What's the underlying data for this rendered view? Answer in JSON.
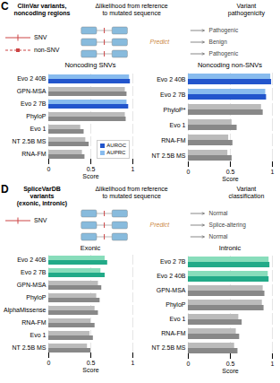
{
  "chart_data": [
    {
      "type": "bar",
      "orientation": "horizontal",
      "title": "Noncoding SNVs",
      "annotations": [
        "C",
        "ClinVar variants,\nnoncoding regions",
        "Δlikelihood from reference\nto mutated sequence",
        "Predict",
        "Variant\npathogenicity",
        "SNV",
        "non-SNV",
        "Pathogenic",
        "Benign",
        "Pathogenic"
      ],
      "categories": [
        "Evo 2 40B",
        "GPN-MSA",
        "Evo 2 7B",
        "PhyloP",
        "Evo 1",
        "NT 2.5B MS",
        "RNA-FM"
      ],
      "series": [
        {
          "name": "AUROC",
          "color": "#2255cc",
          "colors": [
            "#2255cc",
            "#888888",
            "#2255cc",
            "#888888",
            "#888888",
            "#888888",
            "#888888"
          ],
          "values": [
            0.97,
            0.93,
            0.95,
            0.92,
            0.42,
            0.48,
            0.43
          ]
        },
        {
          "name": "AUPRC",
          "color": "#88bbee",
          "colors": [
            "#88bbee",
            "#bbbbbb",
            "#88bbee",
            "#bbbbbb",
            "#bbbbbb",
            "#bbbbbb",
            "#bbbbbb"
          ],
          "values": [
            0.96,
            0.91,
            0.93,
            0.91,
            0.38,
            0.44,
            0.4
          ]
        }
      ],
      "xlim": [
        0,
        1
      ],
      "xticks": [
        0,
        0.5,
        1
      ],
      "xlabel": "Score",
      "grid": true,
      "legend": "lower right"
    },
    {
      "type": "bar",
      "orientation": "horizontal",
      "title": "Noncoding non-SNVs",
      "categories": [
        "Evo 2 40B",
        "Evo 2 7B",
        "PhyloP*",
        "Evo 1",
        "RNA-FM",
        "NT 2.5B MS"
      ],
      "series": [
        {
          "name": "AUROC",
          "colors": [
            "#2255cc",
            "#2255cc",
            "#888888",
            "#888888",
            "#888888",
            "#888888"
          ],
          "values": [
            0.99,
            0.93,
            0.89,
            0.58,
            0.53,
            0.52
          ]
        },
        {
          "name": "AUPRC",
          "colors": [
            "#88bbee",
            "#88bbee",
            "#bbbbbb",
            "#bbbbbb",
            "#bbbbbb",
            "#bbbbbb"
          ],
          "values": [
            0.98,
            0.92,
            0.87,
            0.52,
            0.48,
            0.47
          ]
        }
      ],
      "xlim": [
        0,
        1
      ],
      "xticks": [
        0,
        0.5,
        1
      ],
      "xlabel": "Score",
      "grid": true,
      "legend": false
    },
    {
      "type": "bar",
      "orientation": "horizontal",
      "title": "Exonic",
      "annotations": [
        "D",
        "SpliceVarDB\nvariants\n(exonic, intronic)",
        "Δlikelihood from reference\nto mutated sequence",
        "Predict",
        "Variant\nclassification",
        "SNV",
        "Normal",
        "Splice-altering",
        "Normal"
      ],
      "categories": [
        "Evo 2 40B",
        "Evo 2 7B",
        "GPN-MSA",
        "PhyloP",
        "AlphaMissense",
        "RNA-FM",
        "Evo 1",
        "NT 2.5B MS"
      ],
      "series": [
        {
          "name": "AUROC",
          "colors": [
            "#22aa88",
            "#22aa88",
            "#888888",
            "#888888",
            "#888888",
            "#888888",
            "#888888",
            "#888888"
          ],
          "values": [
            0.7,
            0.67,
            0.63,
            0.61,
            0.59,
            0.55,
            0.53,
            0.5
          ]
        },
        {
          "name": "AUPRC",
          "colors": [
            "#88ddbb",
            "#88ddbb",
            "#bbbbbb",
            "#bbbbbb",
            "#bbbbbb",
            "#bbbbbb",
            "#bbbbbb",
            "#bbbbbb"
          ],
          "values": [
            0.67,
            0.62,
            0.59,
            0.57,
            0.55,
            0.5,
            0.49,
            0.46
          ]
        }
      ],
      "xlim": [
        0,
        1
      ],
      "xticks": [
        0,
        0.5,
        1
      ],
      "xlabel": "Score",
      "grid": true,
      "legend": false
    },
    {
      "type": "bar",
      "orientation": "horizontal",
      "title": "Intronic",
      "categories": [
        "Evo 2 7B",
        "Evo 2 40B",
        "GPN-MSA",
        "PhyloP",
        "Evo 1",
        "RNA-FM",
        "NT 2.5B MS"
      ],
      "series": [
        {
          "name": "AUROC",
          "colors": [
            "#22aa88",
            "#22aa88",
            "#888888",
            "#888888",
            "#888888",
            "#888888",
            "#888888"
          ],
          "values": [
            0.97,
            0.96,
            0.91,
            0.9,
            0.64,
            0.61,
            0.59
          ]
        },
        {
          "name": "AUPRC",
          "colors": [
            "#88ddbb",
            "#88ddbb",
            "#bbbbbb",
            "#bbbbbb",
            "#bbbbbb",
            "#bbbbbb",
            "#bbbbbb"
          ],
          "values": [
            0.96,
            0.95,
            0.89,
            0.88,
            0.6,
            0.57,
            0.55
          ]
        }
      ],
      "xlim": [
        0,
        1
      ],
      "xticks": [
        0,
        0.5,
        1
      ],
      "xlabel": "Score",
      "grid": true,
      "legend": false
    }
  ]
}
